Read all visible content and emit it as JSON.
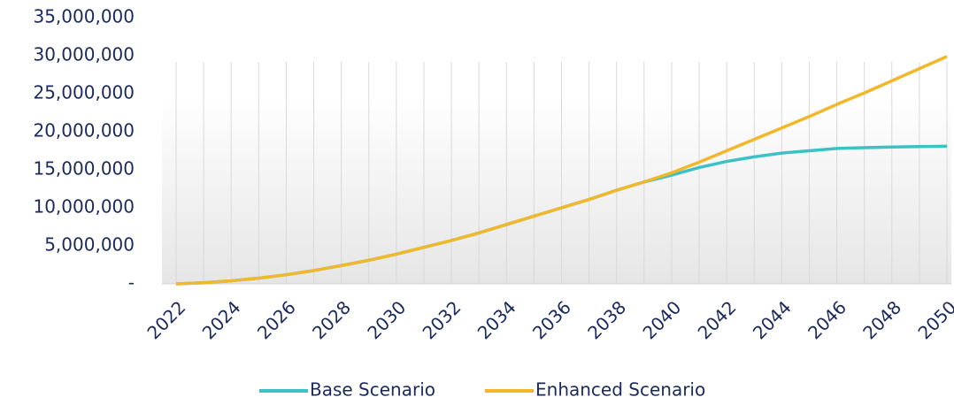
{
  "chart_data": {
    "type": "line",
    "x": [
      2022,
      2023,
      2024,
      2025,
      2026,
      2027,
      2028,
      2029,
      2030,
      2031,
      2032,
      2033,
      2034,
      2035,
      2036,
      2037,
      2038,
      2039,
      2040,
      2041,
      2042,
      2043,
      2044,
      2045,
      2046,
      2047,
      2048,
      2049,
      2050
    ],
    "series": [
      {
        "name": "Base Scenario",
        "color": "#3cc1c4",
        "values": [
          0,
          150000,
          400000,
          750000,
          1200000,
          1750000,
          2400000,
          3100000,
          3900000,
          4800000,
          5700000,
          6700000,
          7800000,
          8900000,
          10000000,
          11100000,
          12300000,
          13400000,
          14300000,
          15300000,
          16100000,
          16700000,
          17200000,
          17500000,
          17800000,
          17900000,
          18000000,
          18050000,
          18100000
        ]
      },
      {
        "name": "Enhanced Scenario",
        "color": "#f0b82a",
        "values": [
          0,
          150000,
          400000,
          750000,
          1200000,
          1750000,
          2400000,
          3100000,
          3900000,
          4800000,
          5700000,
          6700000,
          7800000,
          8900000,
          10000000,
          11100000,
          12300000,
          13400000,
          14600000,
          16000000,
          17500000,
          19000000,
          20500000,
          22000000,
          23600000,
          25100000,
          26700000,
          28300000,
          29900000
        ]
      }
    ],
    "xlim": [
      2022,
      2050
    ],
    "xticks": [
      2022,
      2024,
      2026,
      2028,
      2030,
      2032,
      2034,
      2036,
      2038,
      2040,
      2042,
      2044,
      2046,
      2048,
      2050
    ],
    "ylim": [
      0,
      35000000
    ],
    "yticks": [
      {
        "value": 0,
        "label": "-"
      },
      {
        "value": 5000000,
        "label": "5,000,000"
      },
      {
        "value": 10000000,
        "label": "10,000,000"
      },
      {
        "value": 15000000,
        "label": "15,000,000"
      },
      {
        "value": 20000000,
        "label": "20,000,000"
      },
      {
        "value": 25000000,
        "label": "25,000,000"
      },
      {
        "value": 30000000,
        "label": "30,000,000"
      },
      {
        "value": 35000000,
        "label": "35,000,000"
      }
    ],
    "legend": "bottom"
  }
}
